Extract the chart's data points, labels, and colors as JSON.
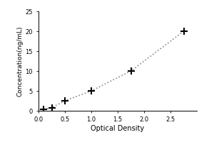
{
  "x": [
    0.1,
    0.25,
    0.5,
    1.0,
    1.75,
    2.75
  ],
  "y": [
    0.3,
    0.8,
    2.5,
    5.0,
    10.0,
    20.0
  ],
  "xlabel": "Optical Density",
  "ylabel": "Concentration(ng/mL)",
  "xlim": [
    0,
    3.0
  ],
  "ylim": [
    0,
    25
  ],
  "xticks": [
    0,
    0.5,
    1,
    1.5,
    2,
    2.5
  ],
  "yticks": [
    0,
    5,
    10,
    15,
    20,
    25
  ],
  "line_color": "#888888",
  "marker_color": "black",
  "marker": "+",
  "linestyle": ":",
  "linewidth": 1.2,
  "markersize": 7,
  "markeredgewidth": 1.5,
  "background_color": "#ffffff",
  "tick_labelsize": 6,
  "label_fontsize": 7,
  "ylabel_fontsize": 6.5
}
